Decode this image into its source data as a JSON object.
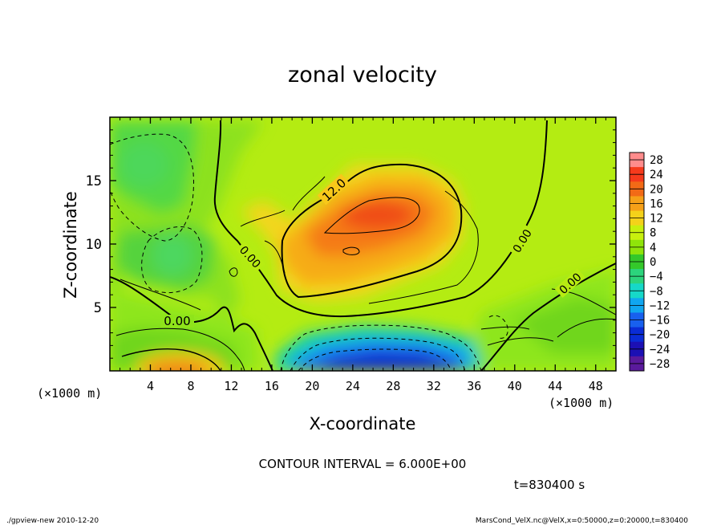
{
  "chart_data": {
    "type": "heatmap",
    "title": "zonal velocity",
    "xlabel": "X-coordinate",
    "ylabel": "Z-coordinate",
    "x_units_label": "(×1000 m)",
    "z_units_label": "(×1000 m)",
    "xlim": [
      0,
      50
    ],
    "ylim": [
      0,
      20
    ],
    "x_ticks": [
      4,
      8,
      12,
      16,
      20,
      24,
      28,
      32,
      36,
      40,
      44,
      48
    ],
    "y_ticks": [
      5,
      10,
      15
    ],
    "colorbar_levels": [
      28,
      24,
      20,
      16,
      12,
      8,
      4,
      0,
      -4,
      -8,
      -12,
      -16,
      -20,
      -24,
      -28
    ],
    "colorbar_colors": [
      "#ff8c8c",
      "#f63a1c",
      "#f26a16",
      "#f6a018",
      "#f4d21a",
      "#c8f00e",
      "#8fe40a",
      "#34c82a",
      "#2cd47c",
      "#16d8c8",
      "#10a6f0",
      "#1860ee",
      "#0a2cd6",
      "#1c10b4",
      "#5a1a9c"
    ],
    "contour_labels": [
      "12.0",
      "0.00",
      "0.00",
      "0.00",
      "0.00"
    ],
    "contour_interval": "CONTOUR INTERVAL = 6.000E+00",
    "time_label": "t=830400 s",
    "footer_left": "./gpview-new  2010-12-20",
    "footer_right": "MarsCond_VelX.nc@VelX,x=0:50000,z=0:20000,t=830400"
  }
}
